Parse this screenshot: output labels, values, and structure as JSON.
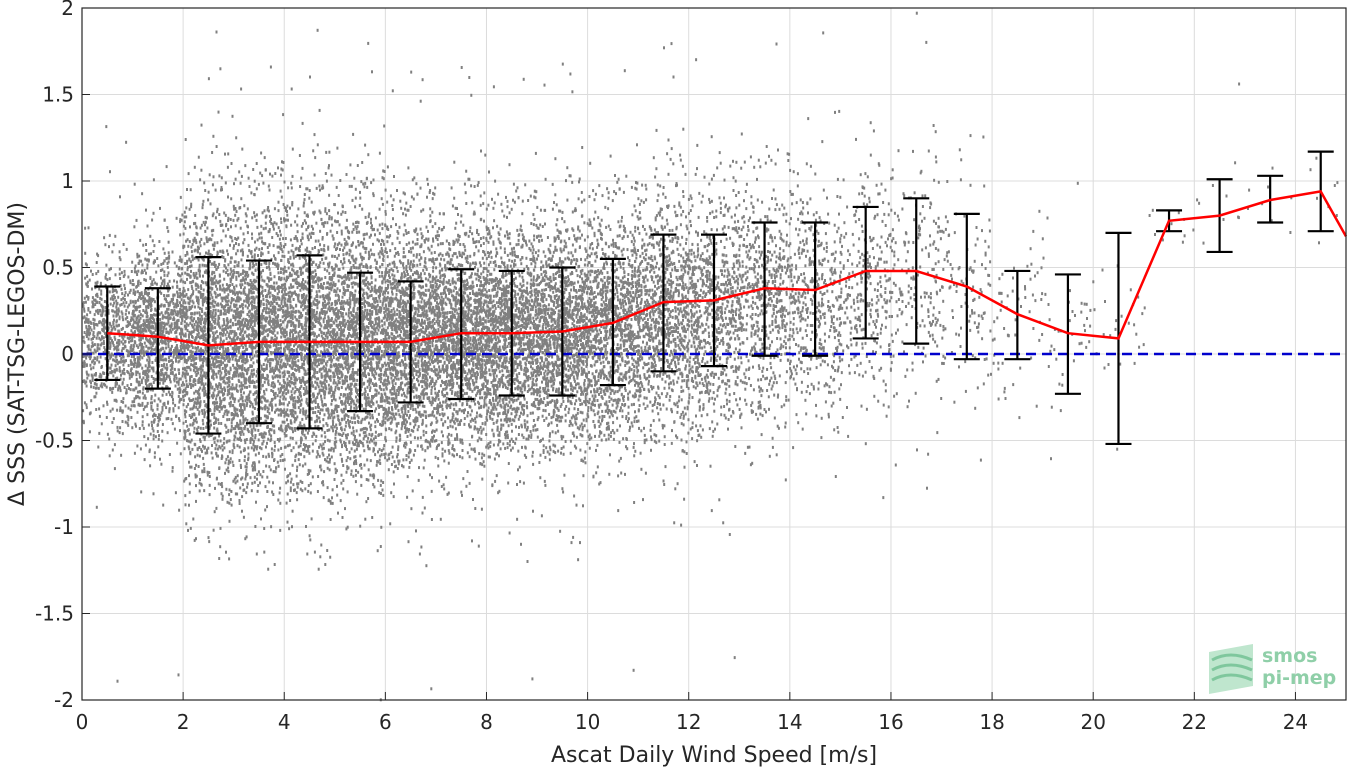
{
  "chart_data": {
    "type": "scatter",
    "xlabel": "Ascat Daily Wind Speed [m/s]",
    "ylabel": "Δ SSS (SAT-TSG-LEGOS-DM)",
    "xlim": [
      0,
      25
    ],
    "ylim": [
      -2,
      2
    ],
    "xticks": [
      0,
      2,
      4,
      6,
      8,
      10,
      12,
      14,
      16,
      18,
      20,
      22,
      24
    ],
    "yticks": [
      -2,
      -1.5,
      -1,
      -0.5,
      0,
      0.5,
      1,
      1.5,
      2
    ],
    "grid": true,
    "legend": "none",
    "colors": {
      "scatter": "#808080",
      "mean_line": "#ff0000",
      "error_bars": "#000000",
      "zero_line": "#0000cc",
      "logo": "#8fcfa8"
    },
    "series": [
      {
        "kind": "binned-mean-with-error-bars",
        "x": [
          0.5,
          1.5,
          2.5,
          3.5,
          4.5,
          5.5,
          6.5,
          7.5,
          8.5,
          9.5,
          10.5,
          11.5,
          12.5,
          13.5,
          14.5,
          15.5,
          16.5,
          17.5,
          18.5,
          19.5,
          20.5,
          21.5,
          22.5,
          23.5,
          24.5,
          25
        ],
        "mean": [
          0.12,
          0.1,
          0.05,
          0.07,
          0.07,
          0.07,
          0.07,
          0.12,
          0.12,
          0.13,
          0.18,
          0.3,
          0.31,
          0.38,
          0.37,
          0.48,
          0.48,
          0.39,
          0.23,
          0.12,
          0.09,
          0.77,
          0.8,
          0.89,
          0.94,
          0.68
        ],
        "upper": [
          0.39,
          0.38,
          0.56,
          0.54,
          0.57,
          0.47,
          0.42,
          0.49,
          0.48,
          0.5,
          0.55,
          0.69,
          0.69,
          0.76,
          0.76,
          0.85,
          0.9,
          0.81,
          0.48,
          0.46,
          0.7,
          0.83,
          1.01,
          1.03,
          1.17,
          null
        ],
        "lower": [
          -0.15,
          -0.2,
          -0.46,
          -0.4,
          -0.43,
          -0.33,
          -0.28,
          -0.26,
          -0.24,
          -0.24,
          -0.18,
          -0.1,
          -0.07,
          -0.01,
          -0.01,
          0.09,
          0.06,
          -0.03,
          -0.03,
          -0.23,
          -0.52,
          0.71,
          0.59,
          0.76,
          0.71,
          null
        ]
      },
      {
        "kind": "reference-line",
        "y": 0
      }
    ],
    "scatter_density": {
      "x": [
        0.5,
        1.5,
        2.5,
        3.5,
        4.5,
        5.5,
        6.5,
        7.5,
        8.5,
        9.5,
        10.5,
        11.5,
        12.5,
        13.5,
        14.5,
        15.5,
        16.5,
        17.5,
        18.5,
        19.5,
        20.5,
        21.5,
        22.5,
        23.5,
        24.5
      ],
      "center": [
        0.08,
        0.08,
        0.06,
        0.07,
        0.07,
        0.07,
        0.08,
        0.1,
        0.11,
        0.12,
        0.16,
        0.22,
        0.26,
        0.3,
        0.32,
        0.38,
        0.42,
        0.38,
        0.25,
        0.15,
        0.1,
        0.75,
        0.8,
        0.88,
        0.92
      ],
      "spread": [
        0.22,
        0.28,
        0.4,
        0.4,
        0.4,
        0.38,
        0.34,
        0.32,
        0.32,
        0.32,
        0.32,
        0.34,
        0.34,
        0.33,
        0.33,
        0.32,
        0.34,
        0.32,
        0.24,
        0.22,
        0.3,
        0.08,
        0.18,
        0.12,
        0.18
      ],
      "count": [
        700,
        1100,
        1500,
        1600,
        1600,
        1600,
        1550,
        1500,
        1450,
        1400,
        1200,
        1000,
        800,
        600,
        450,
        300,
        200,
        120,
        60,
        40,
        25,
        10,
        10,
        8,
        8
      ]
    }
  },
  "logo": {
    "line1": "smos",
    "line2": "pi-mep"
  }
}
